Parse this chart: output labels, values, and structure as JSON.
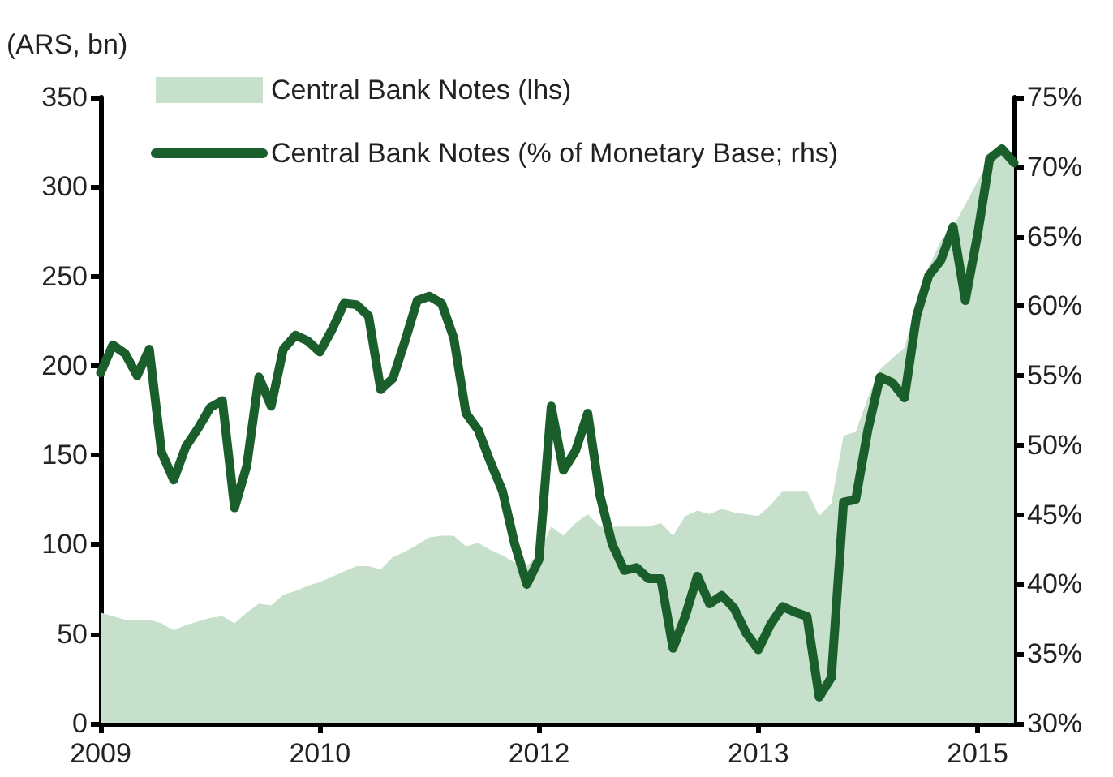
{
  "chart_data": {
    "type": "area",
    "ylabel": "(ARS, bn)",
    "categories": [
      "2009",
      null,
      null,
      null,
      null,
      null,
      null,
      null,
      null,
      null,
      null,
      null,
      null,
      null,
      null,
      null,
      null,
      null,
      "2010",
      null,
      null,
      null,
      null,
      null,
      null,
      null,
      null,
      null,
      null,
      null,
      null,
      null,
      null,
      null,
      null,
      null,
      "2012",
      null,
      null,
      null,
      null,
      null,
      null,
      null,
      null,
      null,
      null,
      null,
      null,
      null,
      null,
      null,
      null,
      null,
      "2013",
      null,
      null,
      null,
      null,
      null,
      null,
      null,
      null,
      null,
      null,
      null,
      null,
      null,
      null,
      null,
      null,
      null,
      "2015",
      null,
      null,
      null
    ],
    "ylim": [
      0,
      350
    ],
    "yticks": [
      0,
      50,
      100,
      150,
      200,
      250,
      300,
      350
    ],
    "y2lim": [
      30,
      75
    ],
    "y2ticks": [
      {
        "value": 30,
        "label": "30%"
      },
      {
        "value": 35,
        "label": "35%"
      },
      {
        "value": 40,
        "label": "40%"
      },
      {
        "value": 45,
        "label": "45%"
      },
      {
        "value": 50,
        "label": "50%"
      },
      {
        "value": 55,
        "label": "55%"
      },
      {
        "value": 60,
        "label": "60%"
      },
      {
        "value": 65,
        "label": "65%"
      },
      {
        "value": 70,
        "label": "70%"
      },
      {
        "value": 75,
        "label": "75%"
      }
    ],
    "series": [
      {
        "name": "Central Bank Notes (lhs)",
        "color": "#c6e0cc",
        "values": [
          62,
          60,
          58,
          58,
          58,
          56,
          52,
          55,
          57,
          59,
          60,
          56,
          62,
          67,
          66,
          72,
          74,
          77,
          79,
          82,
          85,
          88,
          88,
          86,
          93,
          96,
          100,
          104,
          105,
          105,
          99,
          101,
          97,
          94,
          90,
          88,
          95,
          110,
          105,
          112,
          117,
          110,
          110,
          110,
          110,
          110,
          112,
          105,
          116,
          119,
          117,
          120,
          118,
          117,
          116,
          122,
          130,
          130,
          130,
          116,
          123,
          161,
          163,
          182,
          198,
          204,
          210,
          235,
          255,
          270,
          278,
          290,
          303,
          315,
          320,
          314
        ]
      },
      {
        "name": "Central Bank Notes (% of Monetary Base; rhs)",
        "type": "line",
        "axis": "y2",
        "color": "#1a5e2b",
        "values": [
          55.2,
          57.2,
          56.6,
          55.0,
          56.9,
          49.5,
          47.5,
          49.9,
          51.2,
          52.7,
          53.2,
          45.5,
          48.5,
          54.9,
          52.8,
          56.9,
          57.9,
          57.5,
          56.7,
          58.3,
          60.2,
          60.1,
          59.3,
          54.0,
          54.8,
          57.5,
          60.4,
          60.7,
          60.2,
          57.7,
          52.3,
          51.1,
          48.8,
          46.7,
          42.9,
          40.0,
          41.8,
          52.8,
          48.2,
          49.6,
          52.3,
          46.4,
          42.9,
          41.0,
          41.2,
          40.4,
          40.4,
          35.4,
          37.7,
          40.6,
          38.6,
          39.2,
          38.3,
          36.5,
          35.3,
          37.1,
          38.4,
          38.0,
          37.7,
          31.9,
          33.3,
          45.9,
          46.1,
          51.1,
          54.9,
          54.5,
          53.4,
          59.3,
          62.2,
          63.3,
          65.7,
          60.4,
          65.1,
          70.6,
          71.3,
          70.3
        ]
      }
    ],
    "legend": "top left",
    "grid": false,
    "marker": "none",
    "line_style": "solid"
  }
}
